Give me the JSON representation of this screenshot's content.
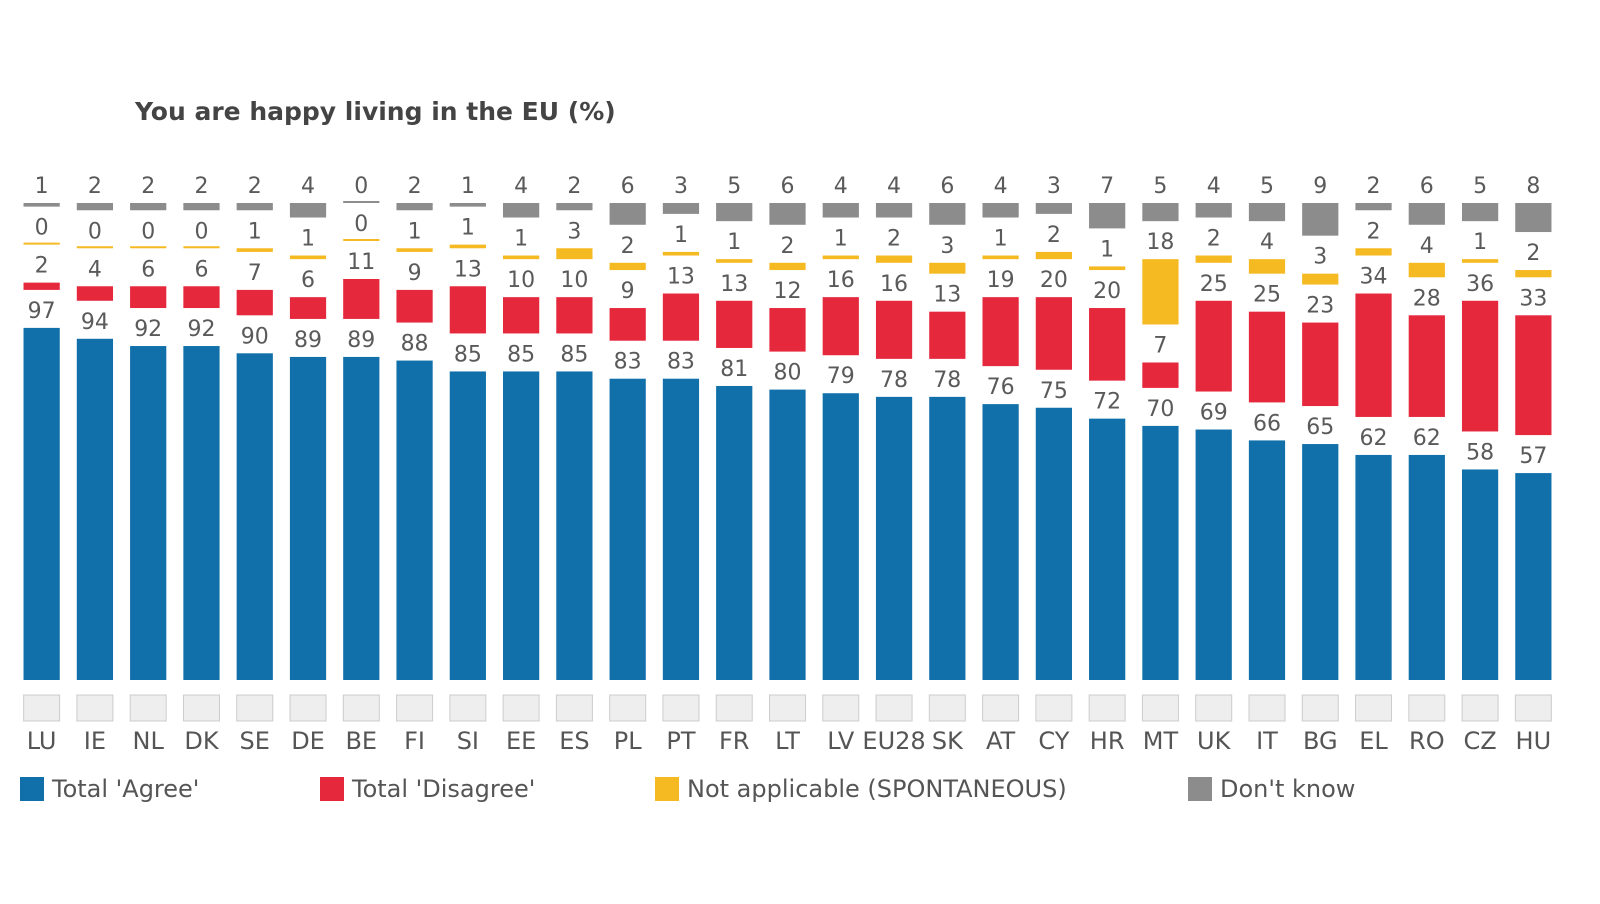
{
  "chart_data": {
    "type": "bar",
    "title": "You are happy living in the EU  (%)",
    "categories": [
      "LU",
      "IE",
      "NL",
      "DK",
      "SE",
      "DE",
      "BE",
      "FI",
      "SI",
      "EE",
      "ES",
      "PL",
      "PT",
      "FR",
      "LT",
      "LV",
      "EU28",
      "SK",
      "AT",
      "CY",
      "HR",
      "MT",
      "UK",
      "IT",
      "BG",
      "EL",
      "RO",
      "CZ",
      "HU"
    ],
    "series": [
      {
        "name": "Total 'Agree'",
        "color": "#1170aa",
        "values": [
          97,
          94,
          92,
          92,
          90,
          89,
          89,
          88,
          85,
          85,
          85,
          83,
          83,
          81,
          80,
          79,
          78,
          78,
          76,
          75,
          72,
          70,
          69,
          66,
          65,
          62,
          62,
          58,
          57
        ]
      },
      {
        "name": "Total 'Disagree'",
        "color": "#e5283c",
        "values": [
          2,
          4,
          6,
          6,
          7,
          6,
          11,
          9,
          13,
          10,
          10,
          9,
          13,
          13,
          12,
          16,
          16,
          13,
          19,
          20,
          20,
          7,
          25,
          25,
          23,
          34,
          28,
          36,
          33
        ]
      },
      {
        "name": "Not applicable (SPONTANEOUS)",
        "color": "#f5b922",
        "values": [
          0,
          0,
          0,
          0,
          1,
          1,
          0,
          1,
          1,
          1,
          3,
          2,
          1,
          1,
          2,
          1,
          2,
          3,
          1,
          2,
          1,
          18,
          2,
          4,
          3,
          2,
          4,
          1,
          2
        ]
      },
      {
        "name": "Don't know",
        "color": "#8c8c8c",
        "values": [
          1,
          2,
          2,
          2,
          2,
          4,
          0,
          2,
          1,
          4,
          2,
          6,
          3,
          5,
          6,
          4,
          4,
          6,
          4,
          3,
          7,
          5,
          4,
          5,
          9,
          2,
          6,
          5,
          8
        ]
      }
    ]
  }
}
